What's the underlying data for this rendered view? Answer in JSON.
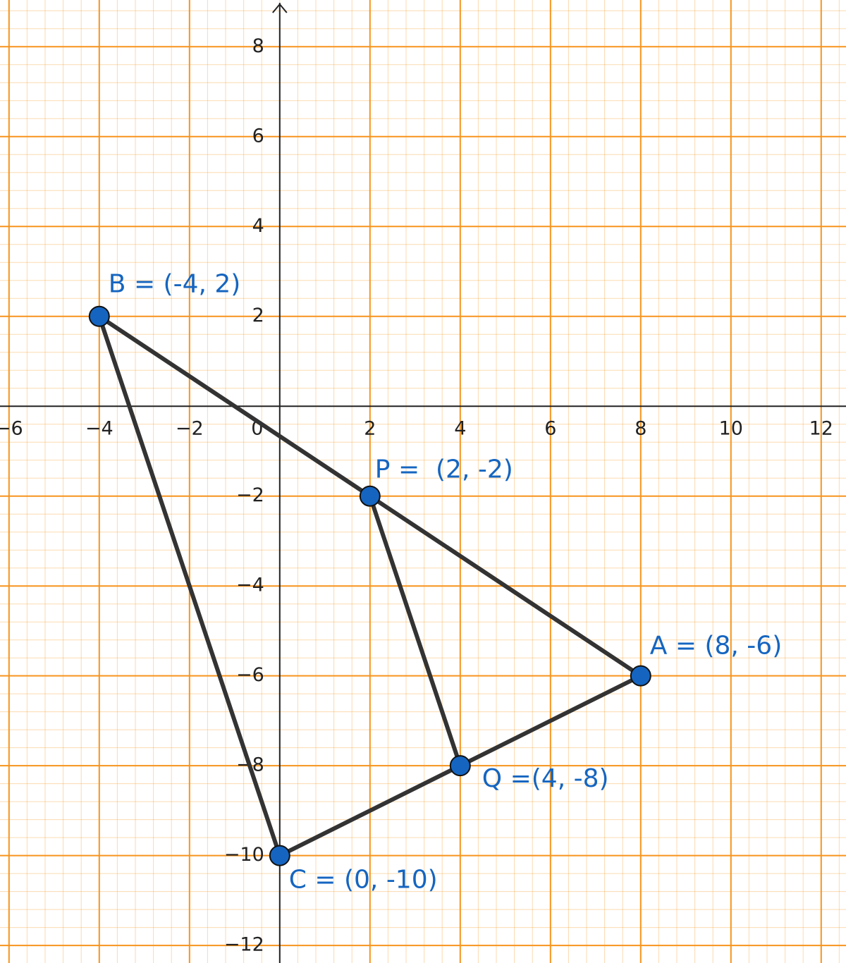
{
  "chart_data": {
    "type": "scatter",
    "xlim": [
      -6.2,
      12.55
    ],
    "ylim": [
      -12.39,
      9.04
    ],
    "xticks": [
      {
        "value": -6,
        "label": "−6"
      },
      {
        "value": -4,
        "label": "−4"
      },
      {
        "value": -2,
        "label": "−2"
      },
      0,
      2,
      4,
      6,
      8,
      10,
      12
    ],
    "yticks": [
      8,
      6,
      4,
      2,
      {
        "value": -2,
        "label": "−2"
      },
      {
        "value": -4,
        "label": "−4"
      },
      {
        "value": -6,
        "label": "−6"
      },
      {
        "value": -8,
        "label": "−8"
      },
      {
        "value": -10,
        "label": "−10"
      },
      {
        "value": -12,
        "label": "−12"
      }
    ],
    "grid": true,
    "grid_color": "#f7941d",
    "point_color": "#1565c0",
    "segment_color": "#333333",
    "points": [
      {
        "label": "A = (8, -6)",
        "x": 8,
        "y": -6
      },
      {
        "label": "B = (-4, 2)",
        "x": -4,
        "y": 2
      },
      {
        "label": "C = (0, -10)",
        "x": 0,
        "y": -10
      },
      {
        "label": "P =  (2, -2)",
        "x": 2,
        "y": -2
      },
      {
        "label": "Q =(4, -8)",
        "x": 4,
        "y": -8
      }
    ]
  }
}
